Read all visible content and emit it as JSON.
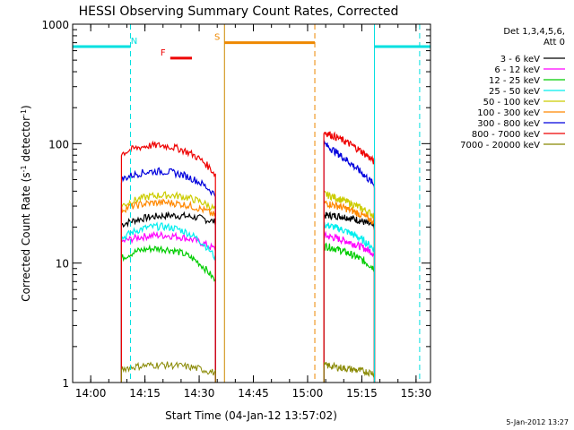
{
  "chart_data": {
    "type": "line",
    "title": "HESSI Observing Summary Count Rates, Corrected",
    "xlabel": "Start Time (04-Jan-12 13:57:02)",
    "ylabel": "Corrected Count Rate (s",
    "ylabel_sup1": "-1",
    "ylabel_mid": " detector",
    "ylabel_sup2": "-1",
    "ylabel_end": ")",
    "footer": "5-Jan-2012 13:27",
    "y_scale": "log",
    "ylim": [
      1,
      1000
    ],
    "y_ticks": [
      {
        "value": 1,
        "label": "1"
      },
      {
        "value": 10,
        "label": "10"
      },
      {
        "value": 100,
        "label": "100"
      },
      {
        "value": 1000,
        "label": "1000"
      }
    ],
    "xlim_minutes": [
      -2,
      97
    ],
    "x_ticks": [
      {
        "value": 3,
        "label": "14:00"
      },
      {
        "value": 18,
        "label": "14:15"
      },
      {
        "value": 33,
        "label": "14:30"
      },
      {
        "value": 48,
        "label": "14:45"
      },
      {
        "value": 63,
        "label": "15:00"
      },
      {
        "value": 78,
        "label": "15:15"
      },
      {
        "value": 93,
        "label": "15:30"
      }
    ],
    "legend": {
      "header_line1": "Det 1,3,4,5,6,",
      "header_line2": "Att 0",
      "placement": "right"
    },
    "series": [
      {
        "name": "3 - 6 keV",
        "color": "#000000",
        "arc1": [
          21,
          25,
          22
        ],
        "arc2": [
          25,
          24,
          20
        ]
      },
      {
        "name": "6 - 12 keV",
        "color": "#ff00ff",
        "arc1": [
          15,
          17,
          13
        ],
        "arc2": [
          17,
          15,
          12
        ]
      },
      {
        "name": "12 - 25 keV",
        "color": "#00cc00",
        "arc1": [
          11,
          13,
          7
        ],
        "arc2": [
          14,
          12,
          9
        ]
      },
      {
        "name": "25 - 50 keV",
        "color": "#00eeee",
        "arc1": [
          16,
          20,
          11
        ],
        "arc2": [
          21,
          18,
          13
        ]
      },
      {
        "name": "50 - 100 keV",
        "color": "#cccc00",
        "arc1": [
          30,
          37,
          28
        ],
        "arc2": [
          38,
          32,
          25
        ]
      },
      {
        "name": "100 - 300 keV",
        "color": "#ff8800",
        "arc1": [
          28,
          32,
          25
        ],
        "arc2": [
          32,
          28,
          22
        ]
      },
      {
        "name": "300 - 800 keV",
        "color": "#0000dd",
        "arc1": [
          50,
          58,
          37
        ],
        "arc2": [
          100,
          70,
          45
        ]
      },
      {
        "name": "800 - 7000 keV",
        "color": "#ee0000",
        "arc1": [
          82,
          95,
          55
        ],
        "arc2": [
          125,
          100,
          70
        ]
      },
      {
        "name": "7000 - 20000 keV",
        "color": "#888800",
        "arc1": [
          1.3,
          1.4,
          1.2
        ],
        "arc2": [
          1.4,
          1.3,
          1.2
        ]
      }
    ],
    "segments": {
      "arc1_minutes": [
        11.5,
        37.5
      ],
      "arc2_minutes": [
        67.5,
        81.5
      ]
    },
    "flags": [
      {
        "label": "N",
        "color": "#00e0e0",
        "y_value": 650,
        "start": -2,
        "end": 14,
        "label_at": 15
      },
      {
        "label": "N",
        "color": "#00e0e0",
        "y_value": 650,
        "start": 81.5,
        "end": 97,
        "label_at": null
      },
      {
        "label": "F",
        "color": "#ee0000",
        "y_value": 520,
        "start": 25,
        "end": 31,
        "label_at": 23
      },
      {
        "label": "S",
        "color": "#ee8800",
        "y_value": 700,
        "start": 40,
        "end": 65,
        "label_at": 38
      }
    ],
    "markers": [
      {
        "minute": -2,
        "color": "#00e0e0",
        "style": "solid"
      },
      {
        "minute": 14,
        "color": "#00e0e0",
        "style": "dashed"
      },
      {
        "minute": 40,
        "color": "#cc8800",
        "style": "solid"
      },
      {
        "minute": 65,
        "color": "#ee8800",
        "style": "dashed"
      },
      {
        "minute": 81.5,
        "color": "#00e0e0",
        "style": "solid"
      },
      {
        "minute": 94,
        "color": "#00e0e0",
        "style": "dashed"
      }
    ]
  }
}
